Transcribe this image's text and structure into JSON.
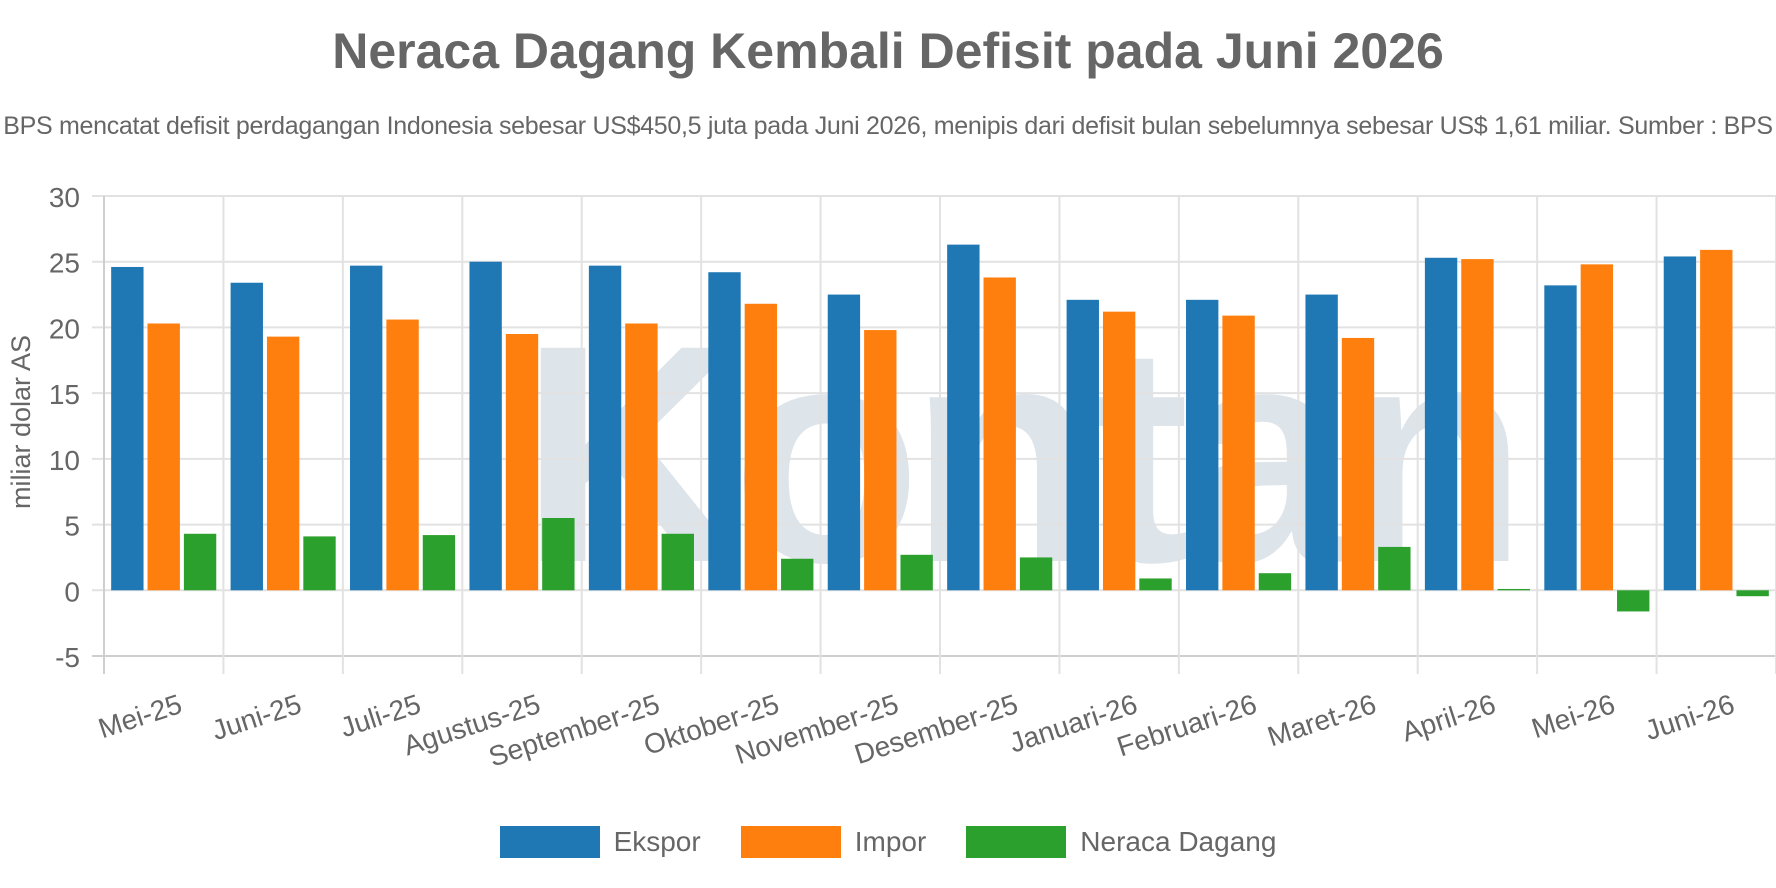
{
  "chart_data": {
    "type": "bar",
    "title": "Neraca Dagang Kembali Defisit pada Juni 2026",
    "subtitle": "BPS mencatat defisit perdagangan Indonesia sebesar US$450,5 juta pada Juni 2026, menipis dari defisit bulan sebelumnya sebesar US$ 1,61 miliar. Sumber : BPS",
    "watermark": "Kontan",
    "ylabel": "miliar dolar AS",
    "xlabel": "",
    "ylim": [
      -5,
      30
    ],
    "yticks": [
      -5,
      0,
      5,
      10,
      15,
      20,
      25,
      30
    ],
    "grid": true,
    "legend_position": "bottom-center",
    "categories": [
      "Mei-25",
      "Juni-25",
      "Juli-25",
      "Agustus-25",
      "September-25",
      "Oktober-25",
      "November-25",
      "Desember-25",
      "Januari-26",
      "Februari-26",
      "Maret-26",
      "April-26",
      "Mei-26",
      "Juni-26"
    ],
    "series": [
      {
        "name": "Ekspor",
        "color": "#1f77b4",
        "values": [
          24.6,
          23.4,
          24.7,
          25.0,
          24.7,
          24.2,
          22.5,
          26.3,
          22.1,
          22.1,
          22.5,
          25.3,
          23.2,
          25.4
        ]
      },
      {
        "name": "Impor",
        "color": "#ff7f0e",
        "values": [
          20.3,
          19.3,
          20.6,
          19.5,
          20.3,
          21.8,
          19.8,
          23.8,
          21.2,
          20.9,
          19.2,
          25.2,
          24.8,
          25.9
        ]
      },
      {
        "name": "Neraca Dagang",
        "color": "#2ca02c",
        "values": [
          4.3,
          4.1,
          4.2,
          5.5,
          4.3,
          2.4,
          2.7,
          2.5,
          0.9,
          1.3,
          3.3,
          0.1,
          -1.61,
          -0.45
        ]
      }
    ]
  }
}
